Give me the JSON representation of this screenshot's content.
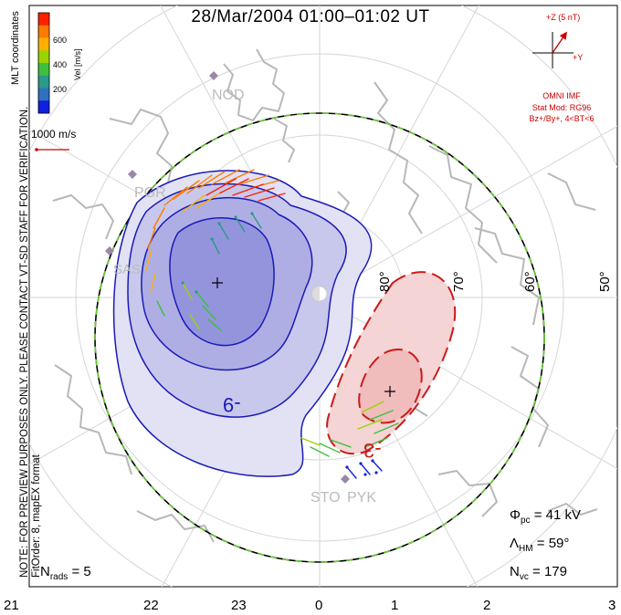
{
  "title": "28/Mar/2004 01:00–01:02 UT",
  "side_note": {
    "line1": "NOTE: FOR PREVIEW PURPOSES ONLY. PLEASE CONTACT VT-SD STAFF FOR VERIFICATION.",
    "line2": "FitOrder: 8, mapEX format"
  },
  "coords_label": "MLT coordinates",
  "colorbar": {
    "unit": "Vel [m/s]",
    "ticks": [
      "600",
      "400",
      "200"
    ],
    "colors": [
      "#ff2000",
      "#ff7a00",
      "#ffb000",
      "#9ad400",
      "#3cc040",
      "#2a9a8a",
      "#3070c0",
      "#1020e0"
    ]
  },
  "scale_vector_label": "1000 m/s",
  "imf": {
    "z_label": "+Z (5 nT)",
    "y_label": "+Y",
    "source": "OMNI IMF",
    "stat_mod": "Stat Mod: RG96",
    "condition": "Bz+/By+, 4<BT<6"
  },
  "stations": [
    "NOD",
    "PGR",
    "SAS",
    "STO",
    "PYK"
  ],
  "latitude_labels": [
    "80°",
    "70°",
    "60°",
    "50°"
  ],
  "mlt_labels": [
    "21",
    "22",
    "23",
    "0",
    "1",
    "2",
    "3"
  ],
  "contour_labels": [
    "-9",
    "-3"
  ],
  "readouts": {
    "phi_pc_label": "Φ",
    "phi_pc_sub": "pc",
    "phi_pc_value": "= 41 kV",
    "lambda_hm_label": "Λ",
    "lambda_hm_sub": "HM",
    "lambda_hm_value": "= 59°",
    "n_vc_label": "N",
    "n_vc_sub": "vc",
    "n_vc_value": "= 179",
    "n_rads_label": "N",
    "n_rads_sub": "rads",
    "n_rads_value": "= 5"
  },
  "colors": {
    "negative_cell": "#1a1ab8",
    "positive_cell": "#cc1a1a",
    "hmb_green": "#66cc33",
    "grid": "#d8d8d8",
    "coast": "#b8b8b8",
    "imf_red": "#cc0000"
  }
}
